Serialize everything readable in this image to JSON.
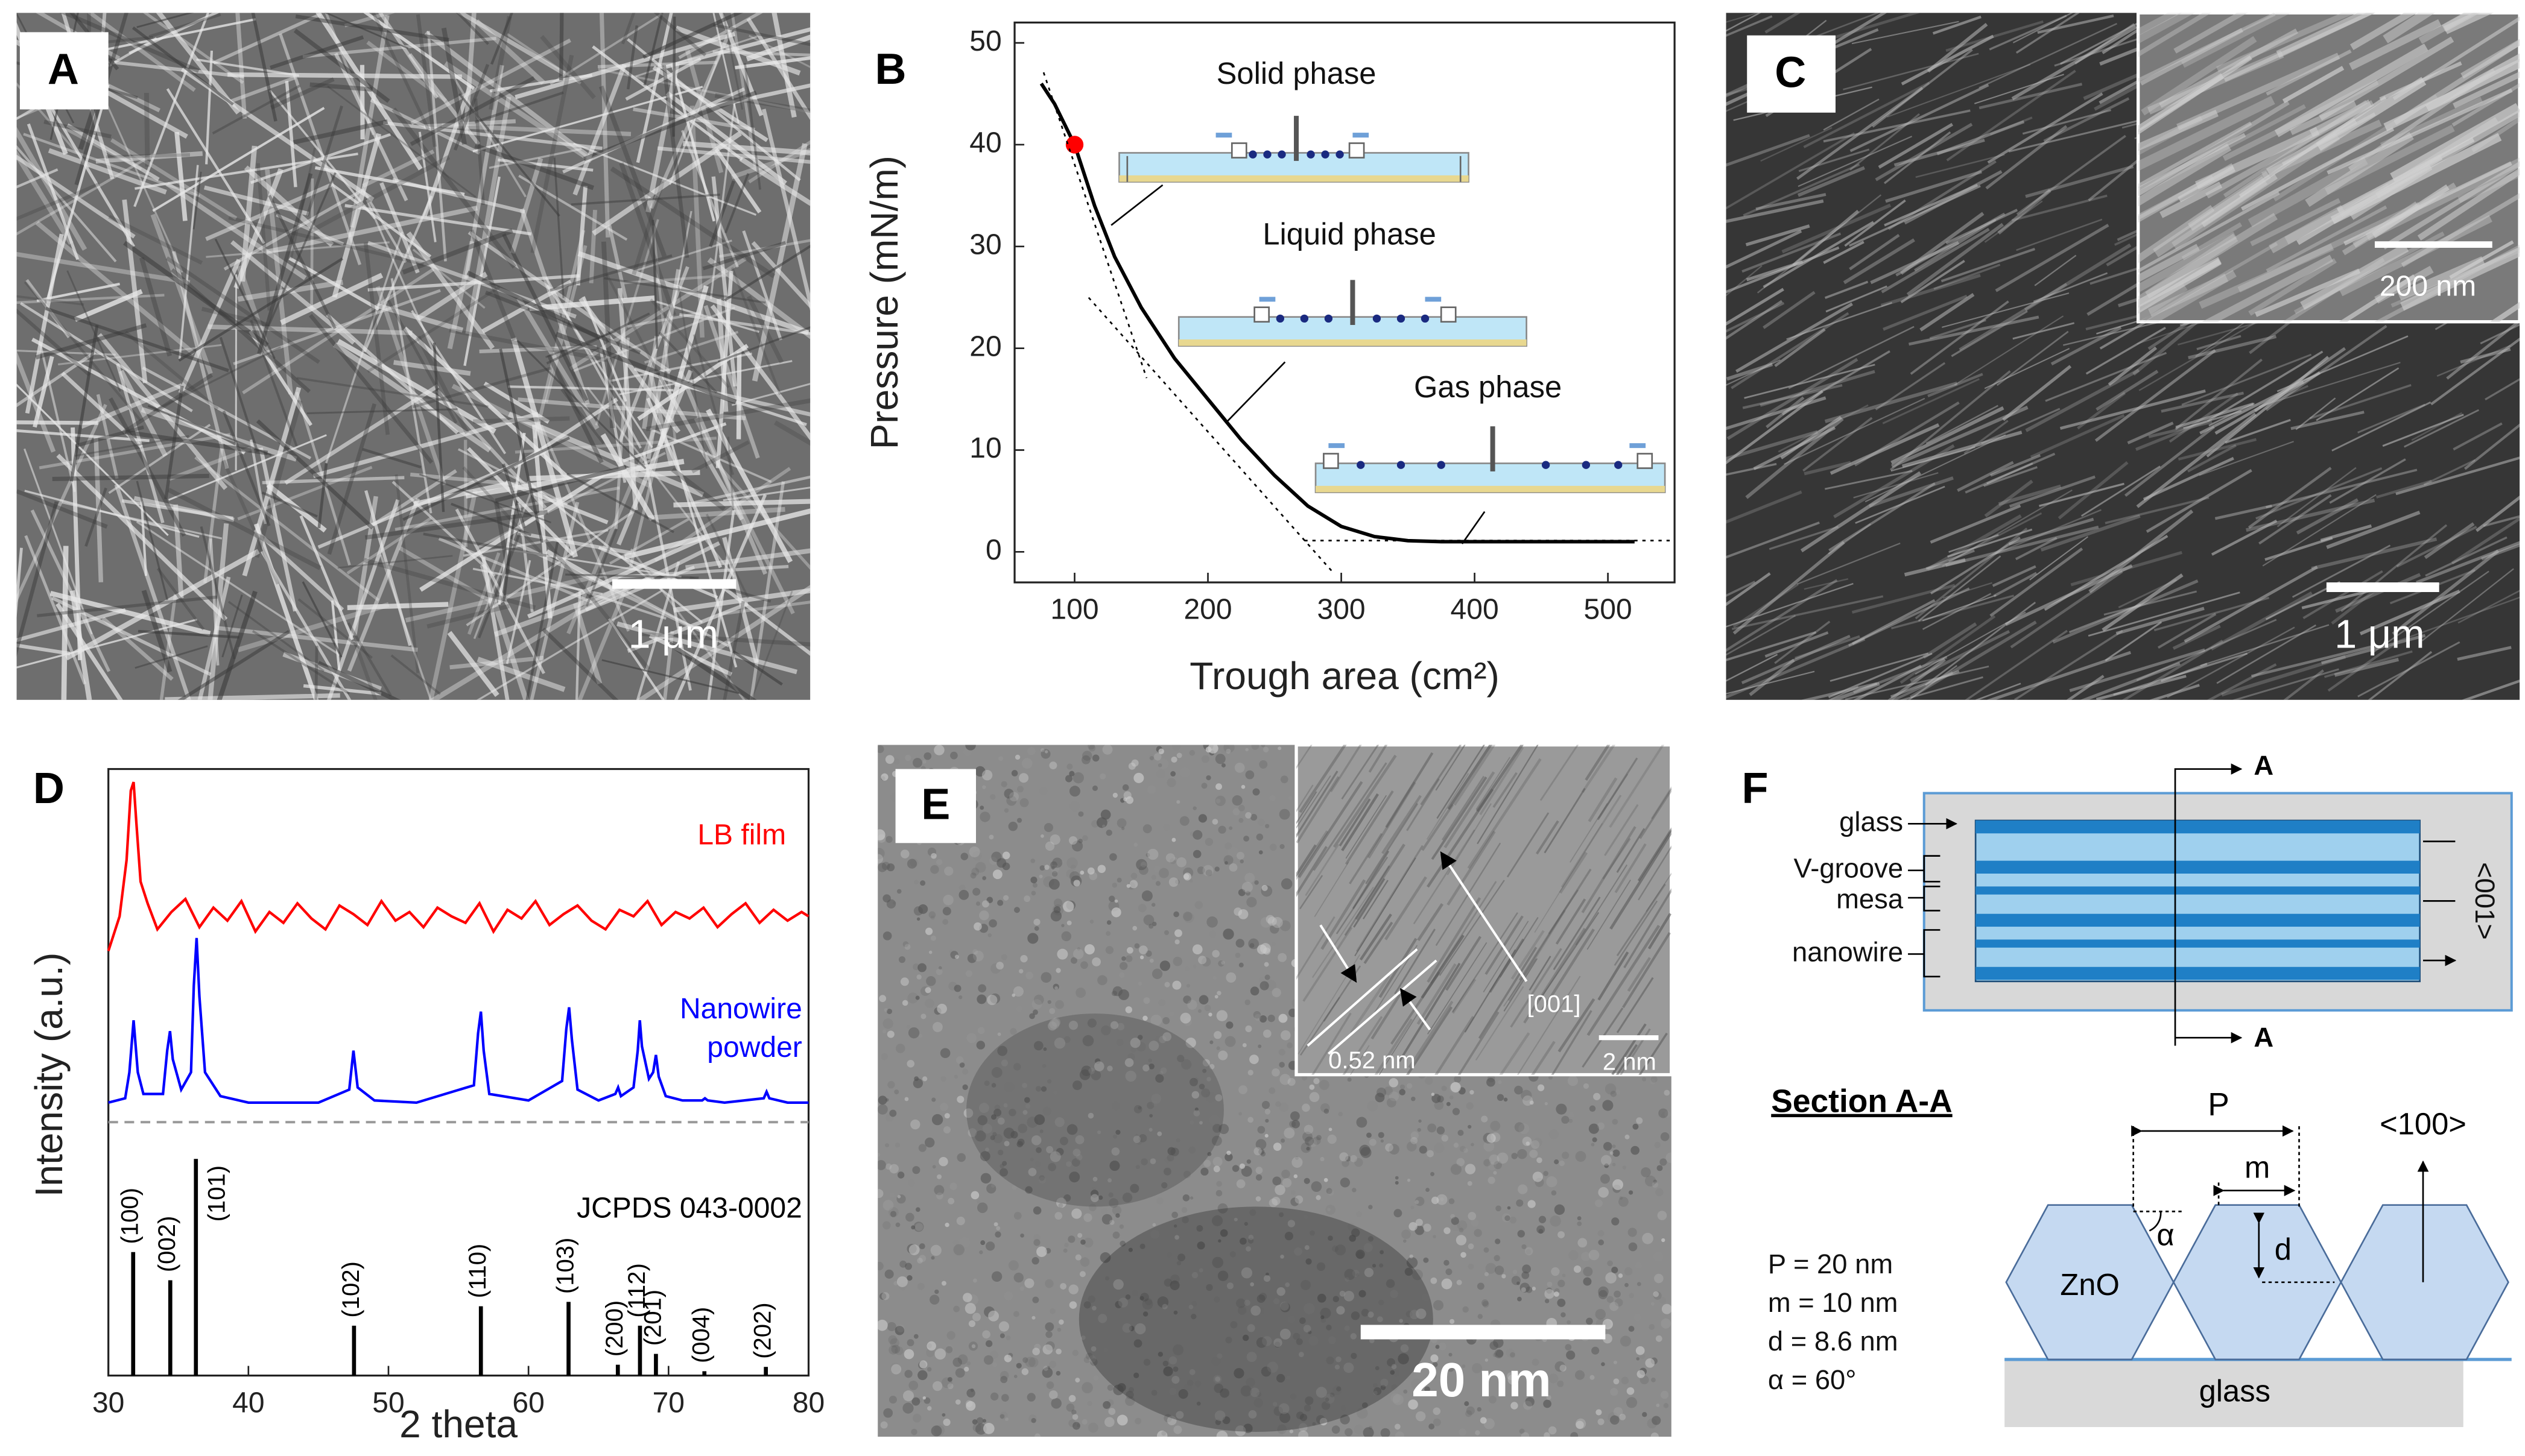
{
  "panels": {
    "A": {
      "label": "A",
      "scale_bar": "1 μm"
    },
    "B": {
      "label": "B"
    },
    "C": {
      "label": "C",
      "scale_bar": "1 μm",
      "inset_scale_bar": "200 nm"
    },
    "D": {
      "label": "D"
    },
    "E": {
      "label": "E",
      "scale_bar": "20 nm",
      "inset_spacing": "0.52 nm",
      "inset_direction": "[001]",
      "inset_scale_bar": "2 nm"
    },
    "F": {
      "label": "F",
      "top_labels": [
        "glass",
        "V-groove",
        "mesa",
        "nanowire"
      ],
      "direction": "<001>",
      "section_mark": "A",
      "section_title": "Section A-A",
      "dims": [
        "P",
        "m",
        "d",
        "α"
      ],
      "normal": "<100>",
      "crystal": "ZnO",
      "substrate": "glass",
      "parameters": [
        "P = 20 nm",
        "m = 10 nm",
        "d = 8.6 nm",
        "α = 60°"
      ]
    }
  },
  "chart_data": [
    {
      "type": "line",
      "xlabel": "Trough area (cm²)",
      "ylabel": "Pressure (mN/m)",
      "x": [
        75,
        85,
        100,
        115,
        130,
        150,
        175,
        200,
        225,
        250,
        275,
        300,
        325,
        350,
        375,
        400,
        450,
        520
      ],
      "series": [
        {
          "color": "#000000",
          "values": [
            46,
            44,
            40,
            34,
            29,
            24,
            19,
            15,
            11,
            7.5,
            4.5,
            2.5,
            1.5,
            1.1,
            1,
            1,
            1,
            1
          ]
        }
      ],
      "highlight": {
        "x": 100,
        "y": 40,
        "color": "#ff0000"
      },
      "annotations": [
        "Solid phase",
        "Liquid phase",
        "Gas phase"
      ],
      "xlim": [
        55,
        550
      ],
      "ylim": [
        -3,
        52
      ],
      "xticks": [
        100,
        200,
        300,
        400,
        500
      ],
      "yticks": [
        0,
        10,
        20,
        30,
        40,
        50
      ]
    },
    {
      "type": "xrd",
      "xlabel": "2 theta",
      "ylabel": "Intensity (a.u.)",
      "xlim": [
        30,
        80
      ],
      "xticks": [
        30,
        40,
        50,
        60,
        70,
        80
      ],
      "ylim": [
        0,
        280
      ],
      "reference_line": {
        "value": 117,
        "color": "#999999"
      },
      "series": [
        {
          "name": "LB film",
          "color": "#ff0000",
          "x": [
            30,
            30.8,
            31.3,
            31.6,
            31.8,
            32.0,
            32.3,
            32.8,
            33.5,
            34.5,
            35.5,
            36.5,
            37.5,
            38.5,
            39.5,
            40.5,
            41.5,
            42.5,
            43.5,
            44.5,
            45.5,
            46.5,
            47.5,
            48.5,
            49.5,
            50.5,
            51.5,
            52.5,
            53.5,
            54.5,
            55.5,
            56.5,
            57.5,
            58.5,
            59.5,
            60.5,
            61.5,
            62.5,
            63.5,
            64.5,
            65.5,
            66.5,
            67.5,
            68.5,
            69.5,
            70.5,
            71.5,
            72.5,
            73.5,
            74.5,
            75.5,
            76.5,
            77.5,
            78.5,
            79.5,
            80
          ],
          "values": [
            196,
            212,
            238,
            270,
            274,
            255,
            228,
            218,
            206,
            214,
            220,
            207,
            216,
            210,
            219,
            205,
            214,
            209,
            218,
            211,
            206,
            217,
            213,
            208,
            219,
            210,
            214,
            207,
            216,
            212,
            209,
            218,
            205,
            215,
            211,
            219,
            208,
            213,
            217,
            210,
            206,
            215,
            212,
            219,
            208,
            214,
            211,
            216,
            207,
            213,
            218,
            209,
            215,
            210,
            214,
            212
          ]
        },
        {
          "name": "Nanowire powder",
          "color": "#0000ff",
          "x": [
            30,
            31.2,
            31.5,
            31.8,
            32.1,
            32.5,
            33.9,
            34.2,
            34.4,
            34.6,
            35.2,
            35.9,
            36.1,
            36.3,
            36.5,
            36.9,
            38,
            40,
            45,
            47.2,
            47.5,
            47.8,
            49,
            52,
            56.1,
            56.4,
            56.6,
            56.8,
            57.2,
            60,
            62.4,
            62.7,
            62.9,
            63.1,
            63.5,
            65,
            66.2,
            66.4,
            66.6,
            67.5,
            67.8,
            67.95,
            68.1,
            68.6,
            68.9,
            69.1,
            69.3,
            69.8,
            71,
            72.4,
            72.6,
            72.8,
            74,
            76.8,
            77,
            77.2,
            78.5,
            80
          ],
          "values": [
            126,
            128,
            140,
            164,
            140,
            130,
            130,
            150,
            159,
            146,
            132,
            140,
            180,
            202,
            175,
            140,
            129,
            126,
            126,
            132,
            150,
            133,
            127,
            126,
            134,
            158,
            168,
            150,
            130,
            127,
            136,
            160,
            170,
            155,
            132,
            127,
            130,
            133,
            129,
            133,
            150,
            164,
            152,
            137,
            140,
            148,
            138,
            129,
            127,
            127,
            128,
            127,
            126,
            128,
            131,
            128,
            126,
            126
          ]
        }
      ],
      "reference": {
        "name": "JCPDS 043-0002",
        "color": "#000000",
        "x": [
          31.77,
          34.42,
          36.25,
          47.54,
          56.6,
          62.86,
          66.38,
          67.96,
          69.1,
          72.56,
          76.95
        ],
        "values": [
          57,
          44,
          100,
          23,
          32,
          34,
          5,
          23,
          10,
          2,
          4
        ],
        "labels": [
          "(100)",
          "(002)",
          "(101)",
          "(102)",
          "(110)",
          "(103)",
          "(200)",
          "(112)",
          "(201)",
          "(004)",
          "(202)"
        ]
      }
    }
  ]
}
